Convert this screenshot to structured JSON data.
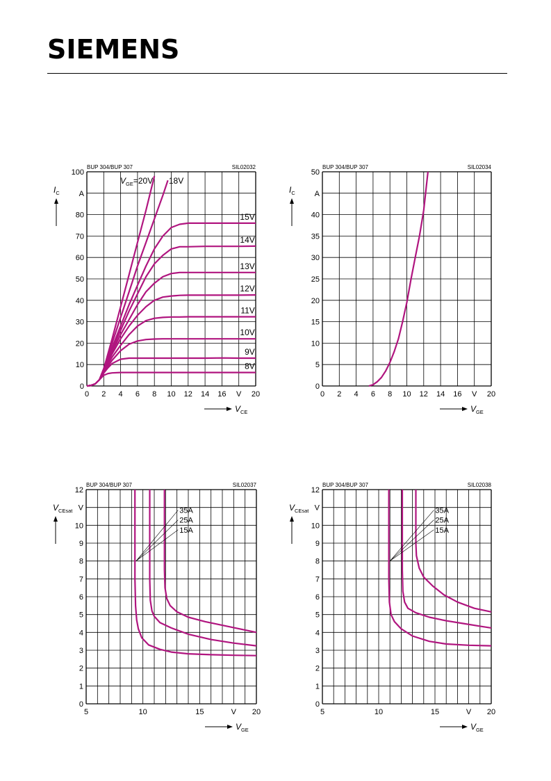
{
  "header": {
    "logo_text": "SIEMENS"
  },
  "curve_color": "#b0157f",
  "chart_data": [
    {
      "type": "line",
      "code_left": "BUP 304/BUP 307",
      "code_right": "SIL02032",
      "y_symbol": "I",
      "y_sub": "C",
      "y_unit": "A",
      "x_symbol": "V",
      "x_sub": "CE",
      "x_unit": "V",
      "xlim": [
        0,
        20
      ],
      "ylim": [
        0,
        100
      ],
      "x_ticks": [
        "0",
        "2",
        "4",
        "6",
        "8",
        "10",
        "12",
        "14",
        "16",
        "V",
        "20"
      ],
      "y_ticks": [
        "0",
        "10",
        "20",
        "30",
        "40",
        "50",
        "60",
        "70",
        "80",
        "A",
        "100"
      ],
      "series": [
        {
          "name": "VGE=20V",
          "label_main": "V",
          "label_sub": "GE",
          "label_tail": "=20V",
          "x": [
            0,
            0.5,
            1,
            1.5,
            2,
            3,
            4,
            5,
            6,
            7,
            8
          ],
          "y": [
            0,
            0.3,
            1,
            3,
            8,
            22,
            37,
            52,
            67,
            82,
            98
          ]
        },
        {
          "name": "18V",
          "label_main": "18V",
          "x": [
            0,
            0.5,
            1,
            1.5,
            2,
            3,
            4,
            5,
            6,
            7,
            8,
            9,
            9.6
          ],
          "y": [
            0,
            0.3,
            1,
            3,
            8,
            20,
            32,
            44,
            56,
            67,
            78,
            89,
            96
          ]
        },
        {
          "name": "15V",
          "label_main": "15V",
          "x": [
            0,
            0.5,
            1,
            1.5,
            2,
            3,
            4,
            5,
            6,
            7,
            8,
            9,
            10,
            11,
            12,
            14,
            16,
            18,
            20
          ],
          "y": [
            0,
            0.3,
            1,
            3,
            8,
            18,
            28,
            38,
            47,
            56,
            64,
            70,
            74,
            75.5,
            76,
            76,
            76,
            76,
            76
          ]
        },
        {
          "name": "14V",
          "label_main": "14V",
          "x": [
            0,
            0.5,
            1,
            1.5,
            2,
            3,
            4,
            5,
            6,
            7,
            8,
            9,
            10,
            11,
            12,
            14,
            16,
            18,
            20
          ],
          "y": [
            0,
            0.3,
            1,
            3,
            8,
            17,
            26,
            35,
            43,
            51,
            57,
            61,
            64,
            65,
            65,
            65.2,
            65.2,
            65.2,
            65.3
          ]
        },
        {
          "name": "13V",
          "label_main": "13V",
          "x": [
            0,
            0.5,
            1,
            1.5,
            2,
            3,
            4,
            5,
            6,
            7,
            8,
            9,
            10,
            11,
            12,
            14,
            16,
            18,
            20
          ],
          "y": [
            0,
            0.3,
            1,
            3,
            8,
            16,
            24,
            31,
            38,
            44,
            48,
            51,
            52.5,
            53,
            53,
            53,
            53,
            53,
            53
          ]
        },
        {
          "name": "12V",
          "label_main": "12V",
          "x": [
            0,
            0.5,
            1,
            1.5,
            2,
            3,
            4,
            5,
            6,
            7,
            8,
            9,
            10,
            11,
            12,
            14,
            16,
            18,
            20
          ],
          "y": [
            0,
            0.3,
            1,
            3,
            7.5,
            15,
            22,
            28,
            33,
            37,
            40,
            41.5,
            42,
            42.3,
            42.4,
            42.4,
            42.4,
            42.4,
            42.5
          ]
        },
        {
          "name": "11V",
          "label_main": "11V",
          "x": [
            0,
            0.5,
            1,
            1.5,
            2,
            3,
            4,
            5,
            6,
            7,
            8,
            9,
            10,
            11,
            12,
            14,
            16,
            18,
            20
          ],
          "y": [
            0,
            0.3,
            1,
            3,
            7,
            13.5,
            19,
            24,
            28,
            30.5,
            31.6,
            32,
            32.2,
            32.2,
            32.3,
            32.3,
            32.3,
            32.3,
            32.3
          ]
        },
        {
          "name": "10V",
          "label_main": "10V",
          "x": [
            0,
            0.5,
            1,
            1.5,
            2,
            3,
            4,
            5,
            6,
            7,
            8,
            9,
            10,
            12,
            14,
            16,
            18,
            20
          ],
          "y": [
            0,
            0.3,
            1,
            3,
            6.5,
            12,
            16.5,
            19.5,
            21,
            21.7,
            21.9,
            22,
            22,
            22,
            22,
            22,
            22,
            22
          ]
        },
        {
          "name": "9V",
          "label_main": "9V",
          "x": [
            0,
            0.5,
            1,
            1.5,
            2,
            2.5,
            3,
            4,
            5,
            6,
            7,
            8,
            10,
            12,
            14,
            16,
            18,
            20
          ],
          "y": [
            0,
            0.3,
            1,
            3,
            6,
            8.5,
            10.5,
            12.5,
            13,
            13,
            13,
            13,
            13,
            13,
            13,
            13.1,
            13,
            13
          ]
        },
        {
          "name": "8V",
          "label_main": "8V",
          "x": [
            0,
            0.5,
            1,
            1.5,
            2,
            2.5,
            3,
            4,
            5,
            6,
            8,
            10,
            12,
            14,
            16,
            18,
            20
          ],
          "y": [
            0,
            0.3,
            1,
            3,
            5,
            5.8,
            6.1,
            6.3,
            6.3,
            6.3,
            6.3,
            6.3,
            6.3,
            6.3,
            6.3,
            6.3,
            6.3
          ]
        }
      ]
    },
    {
      "type": "line",
      "code_left": "BUP 304/BUP 307",
      "code_right": "SIL02034",
      "y_symbol": "I",
      "y_sub": "C",
      "y_unit": "A",
      "x_symbol": "V",
      "x_sub": "GE",
      "x_unit": "V",
      "xlim": [
        0,
        20
      ],
      "ylim": [
        0,
        50
      ],
      "x_ticks": [
        "0",
        "2",
        "4",
        "6",
        "8",
        "10",
        "12",
        "14",
        "16",
        "V",
        "20"
      ],
      "y_ticks": [
        "0",
        "5",
        "10",
        "15",
        "20",
        "25",
        "30",
        "35",
        "40",
        "A",
        "50"
      ],
      "series": [
        {
          "name": "",
          "x": [
            5.5,
            6,
            6.5,
            7,
            7.5,
            8,
            8.5,
            9,
            9.5,
            10,
            10.5,
            11,
            11.5,
            12,
            12.5
          ],
          "y": [
            0,
            0.3,
            1,
            2,
            3.5,
            5.5,
            8,
            11,
            15,
            19.5,
            25,
            30,
            35,
            41,
            50
          ]
        }
      ]
    },
    {
      "type": "line",
      "code_left": "BUP 304/BUP 307",
      "code_right": "SIL02037",
      "y_symbol": "V",
      "y_sub": "CEsat",
      "y_unit": "V",
      "x_symbol": "V",
      "x_sub": "GE",
      "x_unit": "V",
      "xlim": [
        5,
        20
      ],
      "ylim": [
        0,
        12
      ],
      "x_ticks": [
        "5",
        "",
        "",
        "",
        "",
        "10",
        "",
        "",
        "",
        "",
        "15",
        "",
        "",
        "V",
        "",
        "20"
      ],
      "y_ticks": [
        "0",
        "1",
        "2",
        "3",
        "4",
        "5",
        "6",
        "7",
        "8",
        "9",
        "10",
        "V",
        "12"
      ],
      "annotations": [
        "35A",
        "25A",
        "15A"
      ],
      "series": [
        {
          "name": "15A",
          "x": [
            9.3,
            9.3,
            9.35,
            9.45,
            9.6,
            9.9,
            10.5,
            11.5,
            12.5,
            14,
            16,
            18,
            20
          ],
          "y": [
            12,
            7,
            5.5,
            4.7,
            4.2,
            3.7,
            3.3,
            3.05,
            2.9,
            2.8,
            2.75,
            2.72,
            2.7
          ]
        },
        {
          "name": "25A",
          "x": [
            10.6,
            10.6,
            10.65,
            10.8,
            11,
            11.5,
            12.5,
            14,
            16,
            18,
            20
          ],
          "y": [
            12,
            7,
            5.8,
            5.2,
            4.9,
            4.55,
            4.25,
            3.9,
            3.6,
            3.4,
            3.25
          ]
        },
        {
          "name": "35A",
          "x": [
            11.9,
            11.9,
            11.95,
            12.1,
            12.4,
            13,
            14,
            15.5,
            17,
            18.5,
            20
          ],
          "y": [
            12,
            7.5,
            6.5,
            5.9,
            5.5,
            5.15,
            4.85,
            4.6,
            4.4,
            4.2,
            4.0
          ]
        }
      ]
    },
    {
      "type": "line",
      "code_left": "BUP 304/BUP 307",
      "code_right": "SIL02038",
      "y_symbol": "V",
      "y_sub": "CEsat",
      "y_unit": "V",
      "x_symbol": "V",
      "x_sub": "GE",
      "x_unit": "V",
      "xlim": [
        5,
        20
      ],
      "ylim": [
        0,
        12
      ],
      "x_ticks": [
        "5",
        "",
        "",
        "",
        "",
        "10",
        "",
        "",
        "",
        "",
        "15",
        "",
        "",
        "V",
        "",
        "20"
      ],
      "y_ticks": [
        "0",
        "1",
        "2",
        "3",
        "4",
        "5",
        "6",
        "7",
        "8",
        "9",
        "10",
        "V",
        "12"
      ],
      "annotations": [
        "35A",
        "25A",
        "15A"
      ],
      "series": [
        {
          "name": "15A",
          "x": [
            10.9,
            10.9,
            10.95,
            11.1,
            11.4,
            12,
            13,
            14.5,
            16,
            18,
            20
          ],
          "y": [
            12,
            7,
            5.7,
            5,
            4.6,
            4.2,
            3.8,
            3.5,
            3.35,
            3.28,
            3.25
          ]
        },
        {
          "name": "25A",
          "x": [
            12.1,
            12.1,
            12.15,
            12.3,
            12.6,
            13.3,
            14.5,
            16,
            17.5,
            19,
            20
          ],
          "y": [
            12,
            7.5,
            6.3,
            5.7,
            5.35,
            5.1,
            4.85,
            4.65,
            4.5,
            4.35,
            4.25
          ]
        },
        {
          "name": "35A",
          "x": [
            13.3,
            13.3,
            13.35,
            13.6,
            14,
            14.8,
            15.8,
            17,
            18.5,
            20
          ],
          "y": [
            12,
            9,
            8.3,
            7.6,
            7.1,
            6.6,
            6.1,
            5.7,
            5.35,
            5.15
          ]
        }
      ]
    }
  ]
}
